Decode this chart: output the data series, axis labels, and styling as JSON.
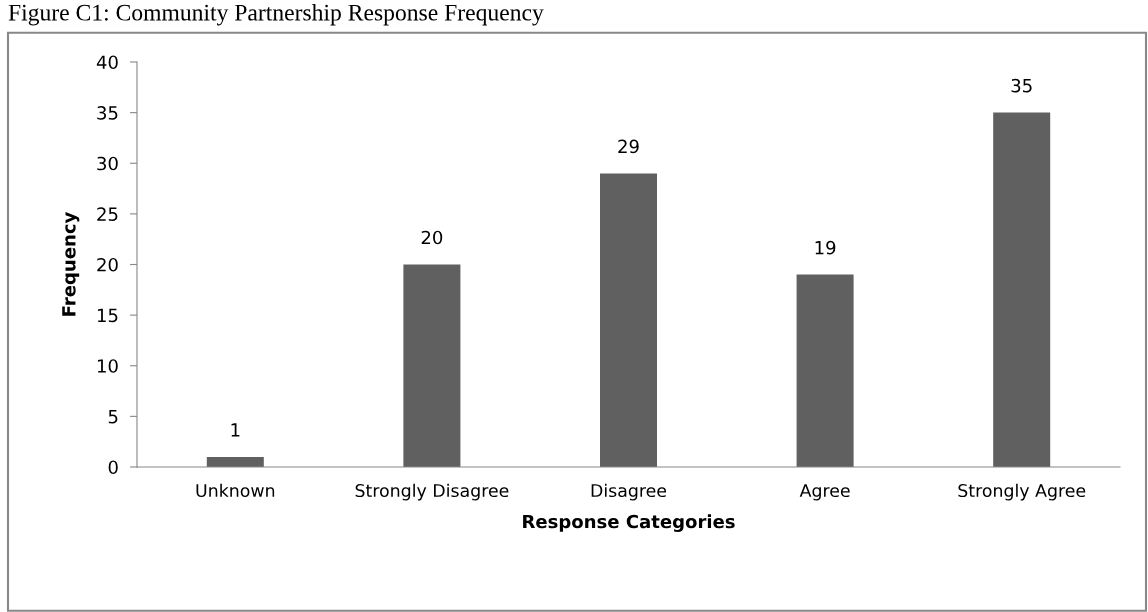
{
  "chart_data": {
    "type": "bar",
    "title": "Figure C1: Community Partnership Response Frequency",
    "xlabel": "Response Categories",
    "ylabel": "Frequency",
    "categories": [
      "Unknown",
      "Strongly Disagree",
      "Disagree",
      "Agree",
      "Strongly Agree"
    ],
    "values": [
      1,
      20,
      29,
      19,
      35
    ],
    "color": "#606060",
    "ylim": [
      0,
      40
    ],
    "yticks": [
      0,
      5,
      10,
      15,
      20,
      25,
      30,
      35,
      40
    ],
    "grid": false,
    "legend": false,
    "data_labels": true
  }
}
